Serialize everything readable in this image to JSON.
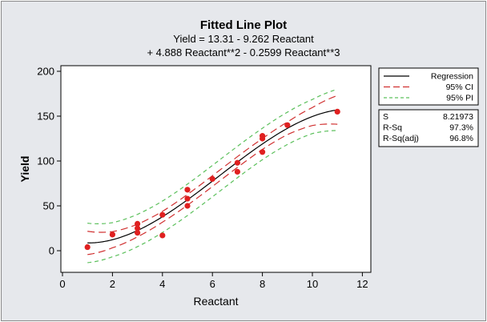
{
  "chart_data": {
    "type": "scatter",
    "title": "Fitted Line Plot",
    "equation_line1": "Yield =  13.31 - 9.262 Reactant",
    "equation_line2": "+ 4.888 Reactant**2 - 0.2599 Reactant**3",
    "xlabel": "Reactant",
    "ylabel": "Yield",
    "xlim": [
      0,
      12
    ],
    "ylim": [
      -15,
      200
    ],
    "x_ticks": [
      0,
      2,
      4,
      6,
      8,
      10,
      12
    ],
    "y_ticks": [
      0,
      50,
      100,
      150,
      200
    ],
    "grid": false,
    "model": {
      "b0": 13.31,
      "b1": -9.262,
      "b2": 4.888,
      "b3": -0.2599
    },
    "fit_range": [
      1,
      11
    ],
    "points": [
      {
        "x": 1,
        "y": 4
      },
      {
        "x": 2,
        "y": 18
      },
      {
        "x": 3,
        "y": 30
      },
      {
        "x": 3,
        "y": 25
      },
      {
        "x": 3,
        "y": 20
      },
      {
        "x": 4,
        "y": 40
      },
      {
        "x": 4,
        "y": 17
      },
      {
        "x": 5,
        "y": 68
      },
      {
        "x": 5,
        "y": 58
      },
      {
        "x": 5,
        "y": 50
      },
      {
        "x": 6,
        "y": 80
      },
      {
        "x": 7,
        "y": 98
      },
      {
        "x": 7,
        "y": 88
      },
      {
        "x": 8,
        "y": 128
      },
      {
        "x": 8,
        "y": 125
      },
      {
        "x": 8,
        "y": 110
      },
      {
        "x": 9,
        "y": 140
      },
      {
        "x": 11,
        "y": 155
      }
    ],
    "ci_halfwidth": [
      {
        "x": 1,
        "v": 13
      },
      {
        "x": 2,
        "v": 9
      },
      {
        "x": 3,
        "v": 7
      },
      {
        "x": 4,
        "v": 6
      },
      {
        "x": 5,
        "v": 6
      },
      {
        "x": 6,
        "v": 6
      },
      {
        "x": 7,
        "v": 6
      },
      {
        "x": 8,
        "v": 6
      },
      {
        "x": 9,
        "v": 7
      },
      {
        "x": 10,
        "v": 10
      },
      {
        "x": 11,
        "v": 16
      }
    ],
    "pi_halfwidth": [
      {
        "x": 1,
        "v": 22
      },
      {
        "x": 2,
        "v": 19
      },
      {
        "x": 3,
        "v": 18
      },
      {
        "x": 4,
        "v": 17.5
      },
      {
        "x": 5,
        "v": 17.5
      },
      {
        "x": 6,
        "v": 17.5
      },
      {
        "x": 7,
        "v": 17.5
      },
      {
        "x": 8,
        "v": 17.5
      },
      {
        "x": 9,
        "v": 18
      },
      {
        "x": 10,
        "v": 19
      },
      {
        "x": 11,
        "v": 23
      }
    ],
    "legend": {
      "placement": "right",
      "entries": [
        {
          "label": "Regression",
          "style": "solid",
          "color": "#000000"
        },
        {
          "label": "95% CI",
          "style": "dashed",
          "color": "#d03030"
        },
        {
          "label": "95% PI",
          "style": "dashed",
          "color": "#5cc05c"
        }
      ]
    },
    "stats": [
      {
        "label": "S",
        "value": "8.21973"
      },
      {
        "label": "R-Sq",
        "value": "97.3%"
      },
      {
        "label": "R-Sq(adj)",
        "value": "96.8%"
      }
    ],
    "colors": {
      "background": "#e6e8ec",
      "plot_area": "#ffffff",
      "points": "#e02020",
      "regression": "#000000",
      "ci": "#d03030",
      "pi": "#5cc05c"
    }
  }
}
